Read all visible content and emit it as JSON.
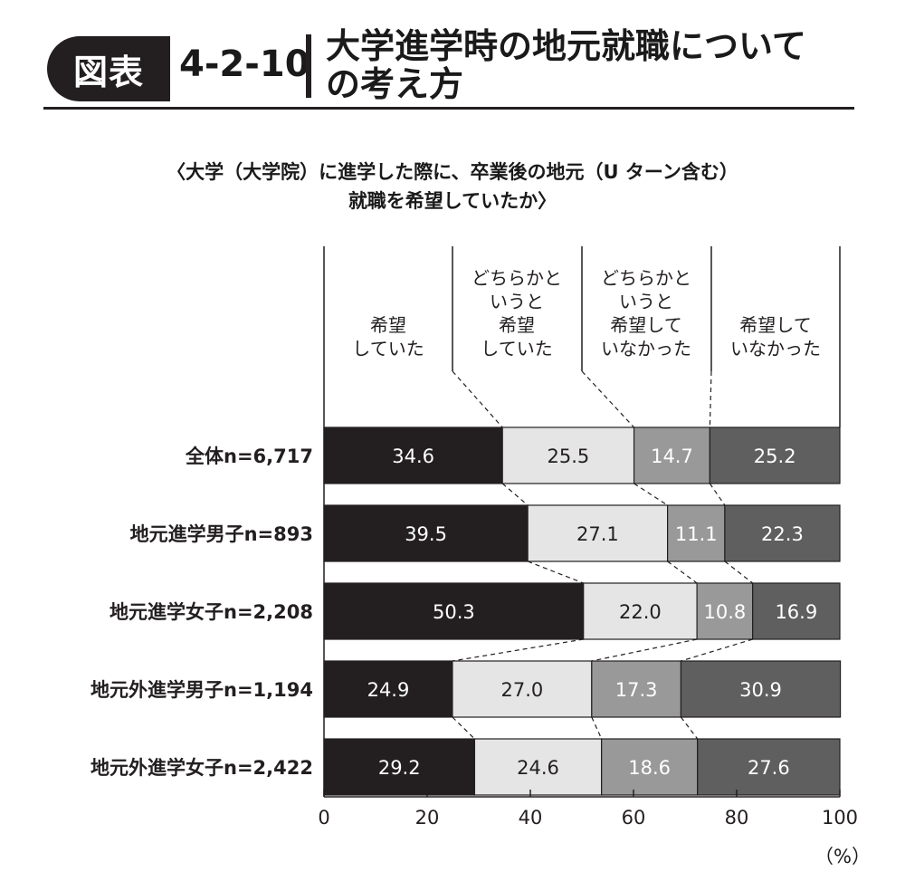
{
  "header": {
    "badge": "図表",
    "figure_number": "4-2-10",
    "title_line1": "大学進学時の地元就職について",
    "title_line2": "の考え方",
    "subtitle_line1": "〈大学（大学院）に進学した際に、卒業後の地元（U ターン含む）",
    "subtitle_line2": "就職を希望していたか〉"
  },
  "chart_data": {
    "type": "bar",
    "orientation": "horizontal",
    "stacked": true,
    "categories": [
      "全体n=6,717",
      "地元進学男子n=893",
      "地元進学女子n=2,208",
      "地元外進学男子n=1,194",
      "地元外進学女子n=2,422"
    ],
    "series": [
      {
        "name": "希望\nしていた",
        "color": "#231f20",
        "label_color": "#ffffff",
        "values": [
          34.6,
          39.5,
          50.3,
          24.9,
          29.2
        ]
      },
      {
        "name": "どちらかと\nいうと\n希望\nしていた",
        "color": "#e5e5e5",
        "label_color": "#231f20",
        "values": [
          25.5,
          27.1,
          22.0,
          27.0,
          24.6
        ]
      },
      {
        "name": "どちらかと\nいうと\n希望して\nいなかった",
        "color": "#999999",
        "label_color": "#ffffff",
        "values": [
          14.7,
          11.1,
          10.8,
          17.3,
          18.6
        ]
      },
      {
        "name": "希望して\nいなかった",
        "color": "#5f5f5f",
        "label_color": "#ffffff",
        "values": [
          25.2,
          22.3,
          16.9,
          30.9,
          27.6
        ]
      }
    ],
    "data_labels": [
      [
        "34.6",
        "25.5",
        "14.7",
        "25.2"
      ],
      [
        "39.5",
        "27.1",
        "11.1",
        "22.3"
      ],
      [
        "50.3",
        "22.0",
        "10.8",
        "16.9"
      ],
      [
        "24.9",
        "27.0",
        "17.3",
        "30.9"
      ],
      [
        "29.2",
        "24.6",
        "18.6",
        "27.6"
      ]
    ],
    "xlim": [
      0,
      100
    ],
    "xticks": [
      "0",
      "20",
      "40",
      "60",
      "80",
      "100"
    ],
    "xunit": "（%）",
    "legend_placement": "top",
    "connector_lines": "dashed"
  }
}
